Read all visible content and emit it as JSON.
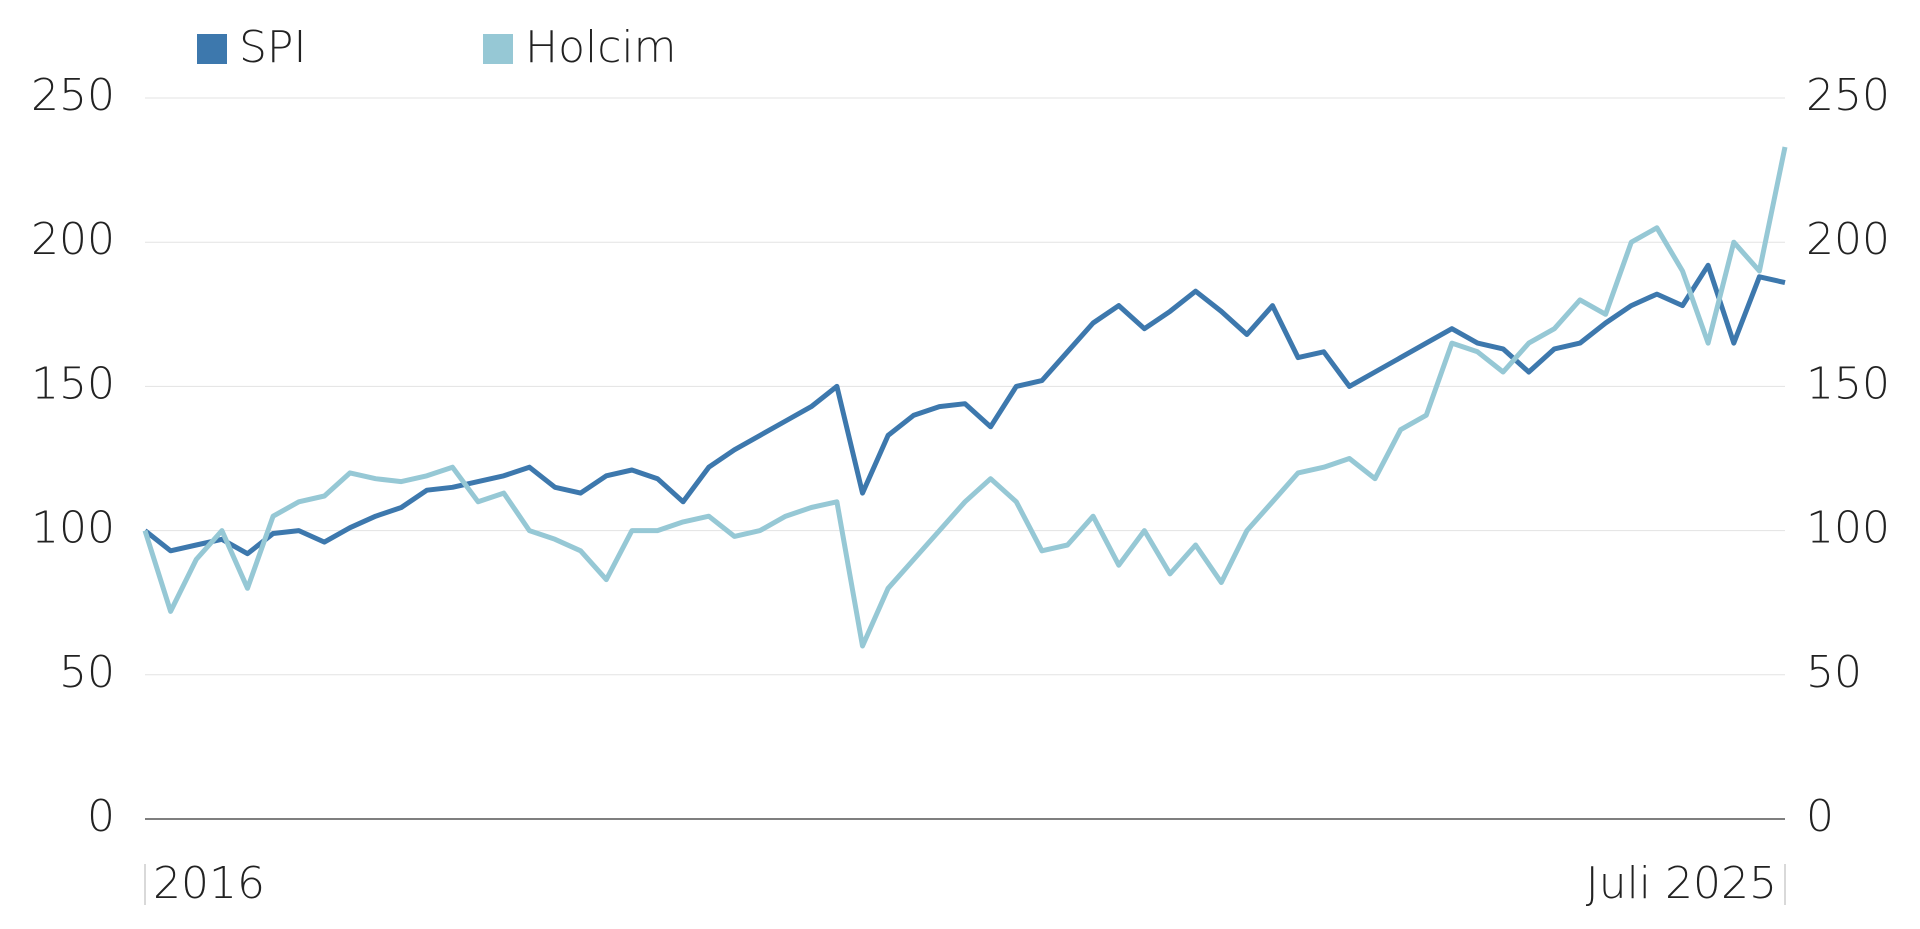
{
  "chart_data": {
    "type": "line",
    "categories": [
      "2016",
      null,
      null,
      null,
      null,
      null,
      null,
      null,
      null,
      null,
      null,
      null,
      null,
      null,
      null,
      null,
      null,
      null,
      null,
      null,
      null,
      null,
      null,
      null,
      null,
      null,
      null,
      null,
      null,
      null,
      null,
      null,
      null,
      null,
      null,
      null,
      null,
      null,
      null,
      null,
      null,
      null,
      null,
      null,
      null,
      null,
      null,
      null,
      null,
      null,
      null,
      null,
      null,
      null,
      null,
      null,
      null,
      null,
      null,
      null,
      null,
      null,
      null,
      null,
      "Juli 2025"
    ],
    "series": [
      {
        "name": "SPI",
        "color": "#3d78ad",
        "values": [
          100,
          93,
          95,
          97,
          92,
          99,
          100,
          96,
          101,
          105,
          108,
          114,
          115,
          117,
          119,
          122,
          115,
          113,
          119,
          121,
          118,
          110,
          122,
          128,
          133,
          138,
          143,
          150,
          113,
          133,
          140,
          143,
          144,
          136,
          150,
          152,
          162,
          172,
          178,
          170,
          176,
          183,
          176,
          168,
          178,
          160,
          162,
          150,
          155,
          160,
          165,
          170,
          165,
          163,
          155,
          163,
          165,
          172,
          178,
          182,
          178,
          192,
          165,
          188,
          186
        ]
      },
      {
        "name": "Holcim",
        "color": "#96c8d5",
        "values": [
          100,
          72,
          90,
          100,
          80,
          105,
          110,
          112,
          120,
          118,
          117,
          119,
          122,
          110,
          113,
          100,
          97,
          93,
          83,
          100,
          100,
          103,
          105,
          98,
          100,
          105,
          108,
          110,
          60,
          80,
          90,
          100,
          110,
          118,
          110,
          93,
          95,
          105,
          88,
          100,
          85,
          95,
          82,
          100,
          110,
          120,
          122,
          125,
          118,
          135,
          140,
          165,
          162,
          155,
          165,
          170,
          180,
          175,
          200,
          205,
          190,
          165,
          200,
          190,
          233
        ]
      }
    ],
    "ylim": [
      0,
      250
    ],
    "yticks": [
      0,
      50,
      100,
      150,
      200,
      250
    ],
    "y2lim": [
      0,
      250
    ],
    "y2ticks": [
      0,
      50,
      100,
      150,
      200,
      250
    ],
    "grid": true
  }
}
